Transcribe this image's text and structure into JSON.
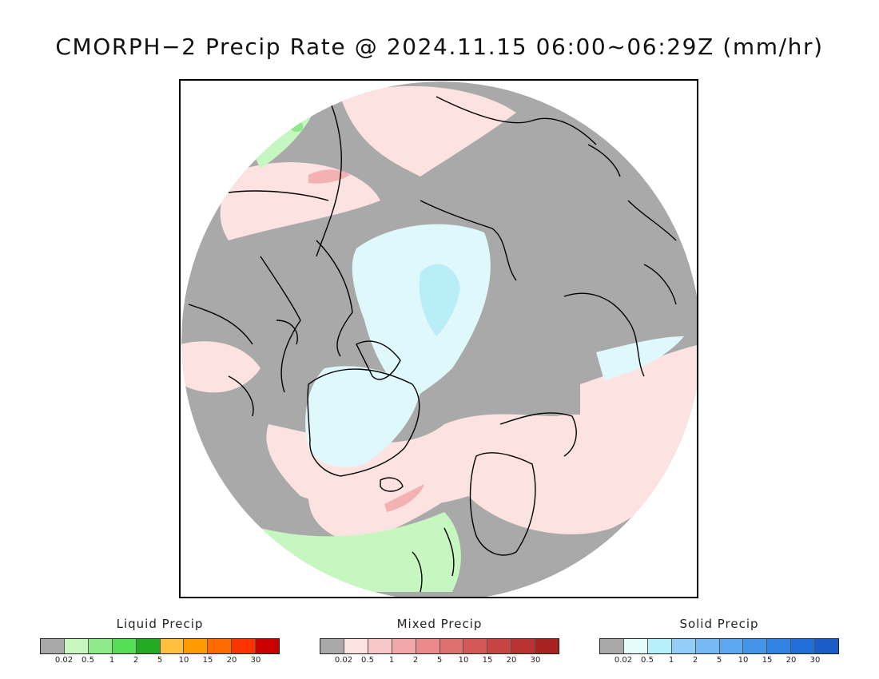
{
  "title": "CMORPH−2 Precip Rate @ 2024.11.15 06:00~06:29Z (mm/hr)",
  "map": {
    "projection": "north-polar-stereographic",
    "colors": {
      "no_precip": "#a9a9a9",
      "liquid_light": "#c6f7c0",
      "liquid_mid": "#8fe98a",
      "liquid_dark": "#33bb33",
      "mixed_light": "#fde2e2",
      "mixed_mid": "#f4b1b1",
      "mixed_dark": "#df7070",
      "solid_light": "#dff8fb",
      "solid_mid": "#b9eef7",
      "coastline": "#000000"
    }
  },
  "legends": [
    {
      "title": "Liquid Precip",
      "colors": [
        "#a9a9a9",
        "#c8f7c0",
        "#8fe98a",
        "#55dd55",
        "#22aa22",
        "#ffc040",
        "#ff9a00",
        "#ff6a00",
        "#ff3300",
        "#cc0000"
      ],
      "ticks": [
        "0.02",
        "0.5",
        "1",
        "2",
        "5",
        "10",
        "15",
        "20",
        "30"
      ]
    },
    {
      "title": "Mixed Precip",
      "colors": [
        "#a9a9a9",
        "#fde2e2",
        "#f8c8c8",
        "#f2a8a8",
        "#ea8a8a",
        "#e07070",
        "#d45858",
        "#c84444",
        "#b83232",
        "#a82222"
      ],
      "ticks": [
        "0.02",
        "0.5",
        "1",
        "2",
        "5",
        "10",
        "15",
        "20",
        "30"
      ]
    },
    {
      "title": "Solid Precip",
      "colors": [
        "#a9a9a9",
        "#e4fcfc",
        "#b6f0f8",
        "#92cdf8",
        "#76b9f4",
        "#5ca8f0",
        "#4494ea",
        "#3282e4",
        "#226ed8",
        "#1a5cc8"
      ],
      "ticks": [
        "0.02",
        "0.5",
        "1",
        "2",
        "5",
        "10",
        "15",
        "20",
        "30"
      ]
    }
  ]
}
